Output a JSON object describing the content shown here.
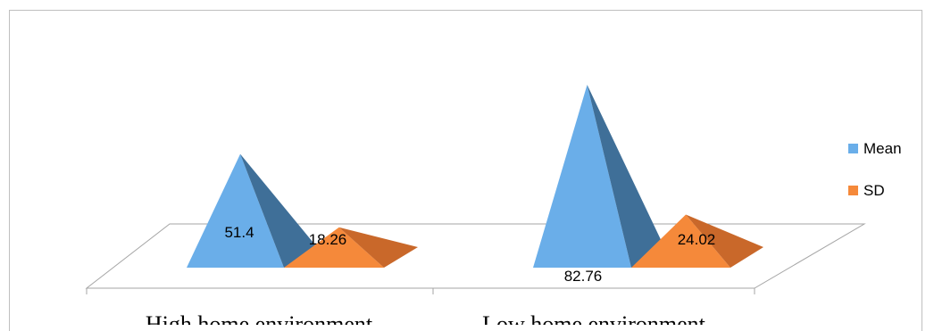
{
  "chart_data": {
    "type": "bar",
    "style": "3d-pyramid",
    "title": "",
    "xlabel": "",
    "ylabel": "",
    "categories": [
      "High home environment",
      "Low home environment"
    ],
    "series": [
      {
        "name": "Mean",
        "values": [
          51.4,
          82.76
        ],
        "color": "#6aaee9",
        "shade": "#3f6f98"
      },
      {
        "name": "SD",
        "values": [
          18.26,
          24.02
        ],
        "color": "#f5893a",
        "shade": "#c9682a"
      }
    ],
    "value_labels": {
      "Mean": [
        "51.4",
        "82.76"
      ],
      "SD": [
        "18.26",
        "24.02"
      ]
    },
    "grid": false,
    "legend": "right"
  }
}
